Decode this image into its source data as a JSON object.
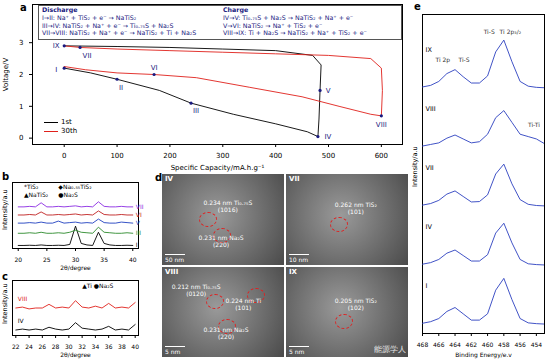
{
  "chart_data": [
    {
      "type": "line",
      "title": "a",
      "x_label": "Specific Capacity/mA.h.g⁻¹",
      "y_label": "Voltage/V",
      "xlim": [
        -60,
        640
      ],
      "xticks": [
        0,
        100,
        200,
        300,
        400,
        500,
        600
      ],
      "ylim": [
        -0.2,
        4.2
      ],
      "yticks": [
        0,
        1,
        2,
        3
      ],
      "series": [
        {
          "name": "1st",
          "color": "#000000",
          "x": [
            0,
            50,
            100,
            180,
            240,
            320,
            400,
            460,
            480,
            482,
            484,
            486,
            470,
            400,
            300,
            200,
            100,
            0
          ],
          "values": [
            2.2,
            2.05,
            1.85,
            1.5,
            1.1,
            0.75,
            0.45,
            0.2,
            0.05,
            0.6,
            1.5,
            2.3,
            2.6,
            2.75,
            2.8,
            2.85,
            2.88,
            2.9
          ]
        },
        {
          "name": "30th",
          "color": "#e0201b",
          "x": [
            0,
            40,
            100,
            170,
            250,
            350,
            450,
            520,
            580,
            600,
            602,
            600,
            580,
            500,
            400,
            300,
            200,
            100,
            30,
            0
          ],
          "values": [
            2.25,
            2.15,
            2.05,
            2.0,
            1.9,
            1.6,
            1.3,
            1.0,
            0.75,
            0.7,
            1.5,
            2.2,
            2.5,
            2.6,
            2.65,
            2.7,
            2.75,
            2.8,
            2.85,
            2.9
          ]
        }
      ],
      "annotations": [
        {
          "text": "I",
          "x": 0,
          "y": 2.2
        },
        {
          "text": "II",
          "x": 100,
          "y": 1.85
        },
        {
          "text": "III",
          "x": 240,
          "y": 1.1
        },
        {
          "text": "IV",
          "x": 480,
          "y": 0.05
        },
        {
          "text": "V",
          "x": 484,
          "y": 1.5
        },
        {
          "text": "VI",
          "x": 170,
          "y": 2.0
        },
        {
          "text": "VII",
          "x": 30,
          "y": 2.85
        },
        {
          "text": "VIII",
          "x": 600,
          "y": 0.7
        },
        {
          "text": "IX",
          "x": 0,
          "y": 2.9
        }
      ],
      "discharge_title": "Discharge",
      "discharge_steps": [
        "I→II: Na⁺ + TiS₂ + e⁻ → NaTiS₂",
        "III→IV: NaTiS₂ + Na⁺ + e⁻ → Ti₀.₇₅S + Na₂S",
        "VII→VIII: NaTiS₂ + Na⁺ + e⁻ → NaTiS₂ + Ti + Na₂S"
      ],
      "charge_title": "Charge",
      "charge_steps": [
        "IV→V: Ti₀.₇₅S + Na₂S → NaTiS₂ + Na⁺ + e⁻",
        "V→VI: NaTiS₂ → Na⁺ + TiS₂ + e⁻",
        "VIII→IX: Ti + Na₂S → NaTiS₂ + Na⁺ + TiS₂ + e⁻"
      ]
    },
    {
      "type": "line",
      "title": "b",
      "x_label": "2θ/degree",
      "y_label": "Intensity/a.u",
      "xlim": [
        19,
        41
      ],
      "xticks": [
        20,
        25,
        30,
        35,
        40
      ],
      "ylim": [
        0,
        6.5
      ],
      "tick_labels": "x",
      "x": [
        20,
        21,
        22,
        23,
        24,
        25,
        26,
        27,
        28,
        29,
        30,
        31,
        32,
        33,
        34,
        35,
        36,
        37,
        38,
        39,
        40
      ],
      "series": [
        {
          "name": "I",
          "color": "#000000",
          "values": [
            0.3,
            0.3,
            0.32,
            0.3,
            0.35,
            0.3,
            0.3,
            0.32,
            0.3,
            0.4,
            2.2,
            0.5,
            0.35,
            0.3,
            1.6,
            0.5,
            0.35,
            0.3,
            0.3,
            0.32,
            0.3
          ]
        },
        {
          "name": "III",
          "color": "#2b8a2b",
          "values": [
            1.5,
            1.5,
            1.55,
            1.5,
            1.6,
            1.5,
            1.5,
            1.55,
            1.5,
            1.6,
            1.8,
            1.6,
            1.55,
            1.5,
            2.1,
            1.6,
            1.55,
            1.5,
            1.5,
            1.55,
            1.5
          ]
        },
        {
          "name": "V",
          "color": "#1f3fbf",
          "values": [
            2.5,
            2.5,
            2.55,
            2.5,
            2.6,
            2.5,
            2.5,
            2.7,
            2.5,
            2.55,
            2.6,
            2.5,
            2.55,
            2.5,
            2.9,
            2.55,
            2.5,
            2.5,
            2.6,
            2.55,
            2.5
          ]
        },
        {
          "name": "VI",
          "color": "#c02020",
          "values": [
            3.3,
            3.3,
            3.35,
            3.3,
            3.6,
            3.3,
            3.3,
            3.35,
            3.3,
            3.35,
            3.4,
            3.3,
            3.35,
            3.3,
            3.7,
            3.35,
            3.3,
            3.3,
            3.35,
            3.3,
            3.3
          ]
        },
        {
          "name": "VII",
          "color": "#8a2be2",
          "values": [
            4.1,
            4.1,
            4.15,
            4.1,
            4.5,
            4.1,
            4.1,
            4.15,
            4.1,
            4.15,
            4.2,
            4.1,
            4.15,
            4.1,
            4.6,
            4.15,
            4.1,
            4.1,
            4.15,
            4.1,
            4.1
          ]
        }
      ],
      "annotations": [
        {
          "text": "*TiS₂",
          "x": 21,
          "y": 6.0
        },
        {
          "text": "◆Na₀.₅₅TiS₂",
          "x": 27,
          "y": 6.0
        },
        {
          "text": "▲NaTiS₂",
          "x": 21,
          "y": 5.3
        },
        {
          "text": "●Na₂S",
          "x": 27,
          "y": 5.3
        }
      ]
    },
    {
      "type": "line",
      "title": "c",
      "x_label": "2θ/degree",
      "y_label": "Intensity/a.u",
      "xlim": [
        21.5,
        40.5
      ],
      "xticks": [
        22,
        24,
        26,
        28,
        30,
        32,
        34,
        36,
        38,
        40
      ],
      "ylim": [
        0,
        3
      ],
      "tick_labels": "x",
      "x": [
        22,
        23,
        24,
        25,
        26,
        27,
        28,
        29,
        30,
        31,
        32,
        33,
        34,
        35,
        36,
        37,
        38,
        39,
        40
      ],
      "series": [
        {
          "name": "IV",
          "color": "#000000",
          "values": [
            0.3,
            0.35,
            0.3,
            0.35,
            0.3,
            0.45,
            0.35,
            0.3,
            0.35,
            0.7,
            0.4,
            0.35,
            0.3,
            0.35,
            0.5,
            0.3,
            0.35,
            0.3,
            0.6
          ]
        },
        {
          "name": "VIII",
          "color": "#e0201b",
          "values": [
            1.5,
            1.55,
            1.45,
            1.5,
            1.5,
            1.7,
            1.5,
            1.55,
            1.5,
            1.9,
            1.55,
            1.5,
            1.6,
            1.5,
            1.75,
            1.5,
            1.55,
            1.5,
            1.8
          ]
        }
      ],
      "annotations": [
        {
          "text": "▲Ti ●Na₂S",
          "x": 32,
          "y": 2.7
        }
      ]
    },
    {
      "type": "line",
      "title": "e",
      "x_label": "Binding Energy/e.v",
      "y_label": "Intensity/a.u",
      "xlim": [
        468,
        453
      ],
      "xticks": [
        468,
        466,
        464,
        462,
        460,
        458,
        456,
        454
      ],
      "ylim": [
        -0.2,
        7.9
      ],
      "tick_labels": "x",
      "x": [
        468,
        467,
        466,
        465,
        464,
        463,
        462,
        461,
        460,
        459,
        458,
        457,
        456,
        455,
        454,
        453
      ],
      "series": [
        {
          "name": "I",
          "color": "#2b3fbf",
          "values": [
            0.06,
            0.1,
            0.18,
            0.36,
            0.46,
            0.3,
            0.14,
            0.14,
            0.3,
            0.9,
            1.2,
            0.66,
            0.18,
            0.07,
            0.05,
            0.04
          ]
        },
        {
          "name": "IV",
          "color": "#2b3fbf",
          "values": [
            1.56,
            1.6,
            1.68,
            1.84,
            1.92,
            1.78,
            1.64,
            1.64,
            1.8,
            2.35,
            2.6,
            2.1,
            1.68,
            1.57,
            1.55,
            1.54
          ]
        },
        {
          "name": "VII",
          "color": "#2b3fbf",
          "values": [
            3.06,
            3.1,
            3.18,
            3.34,
            3.42,
            3.28,
            3.14,
            3.15,
            3.32,
            3.85,
            4.1,
            3.6,
            3.2,
            3.08,
            3.05,
            3.04
          ]
        },
        {
          "name": "VIII",
          "color": "#2b3fbf",
          "values": [
            4.56,
            4.6,
            4.64,
            4.76,
            4.84,
            4.74,
            4.64,
            4.67,
            4.86,
            5.28,
            5.46,
            5.16,
            4.86,
            4.8,
            4.74,
            4.62
          ]
        },
        {
          "name": "IX",
          "color": "#2b3fbf",
          "values": [
            6.06,
            6.1,
            6.2,
            6.4,
            6.5,
            6.32,
            6.16,
            6.16,
            6.34,
            6.95,
            7.25,
            6.7,
            6.2,
            6.08,
            6.05,
            6.04
          ]
        }
      ],
      "annotations": [
        {
          "text": "Ti 2p",
          "x": 465.5,
          "y": 6.75
        },
        {
          "text": "Ti-S",
          "x": 462.9,
          "y": 6.75
        },
        {
          "text": "Ti-S",
          "x": 459.8,
          "y": 7.45
        },
        {
          "text": "Ti 2p₃/₂",
          "x": 457.2,
          "y": 7.45
        },
        {
          "text": "Ti-Ti",
          "x": 454.3,
          "y": 5.1
        }
      ]
    }
  ],
  "images": {
    "title": "d",
    "panels": [
      {
        "label": "IV",
        "annotations": [
          "0.234 nm Ti₀.₇₅S\n(1016)",
          "0.231 nm Na₂S\n(220)"
        ],
        "scale_bar": "50 nm"
      },
      {
        "label": "VII",
        "annotations": [
          "0.262 nm TiS₂\n(101)"
        ],
        "scale_bar": "10 nm"
      },
      {
        "label": "VIII",
        "annotations": [
          "0.212 nm Ti₀.₇₅S\n(0120)",
          "0.224 nm Ti\n(101)",
          "0.231 nm Na₂S\n(220)"
        ],
        "scale_bar": "5 nm"
      },
      {
        "label": "IX",
        "annotations": [
          "0.205 nm TiS₂\n(102)"
        ],
        "scale_bar": "5 nm"
      }
    ]
  },
  "watermark": "能源学人"
}
